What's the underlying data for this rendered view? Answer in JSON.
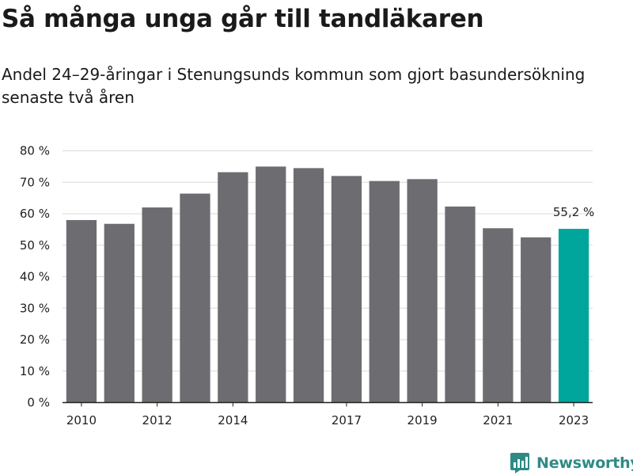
{
  "title": "Så många unga går till tandläkaren",
  "subtitle": "Andel 24–29-åringar i Stenungsunds kommun som gjort basundersökning senaste två åren",
  "brand": {
    "name": "Newsworthy",
    "color": "#2f8a86"
  },
  "colors": {
    "bar": "#6d6c71",
    "highlight": "#00a59c",
    "grid": "#d9d9d9",
    "axis": "#222222"
  },
  "chart_data": {
    "type": "bar",
    "categories": [
      "2010",
      "2011",
      "2012",
      "2013",
      "2014",
      "2015",
      "2016",
      "2017",
      "2018",
      "2019",
      "2020",
      "2021",
      "2022",
      "2023"
    ],
    "values": [
      58.0,
      56.8,
      62.0,
      66.4,
      73.2,
      75.0,
      74.5,
      72.0,
      70.4,
      71.0,
      62.3,
      55.4,
      52.5,
      55.2
    ],
    "x_tick_labels": [
      "2010",
      "",
      "2012",
      "",
      "2014",
      "",
      "",
      "2017",
      "",
      "2019",
      "",
      "2021",
      "",
      "2023"
    ],
    "y_ticks": [
      0,
      10,
      20,
      30,
      40,
      50,
      60,
      70,
      80
    ],
    "y_tick_labels": [
      "0 %",
      "10 %",
      "20 %",
      "30 %",
      "40 %",
      "50 %",
      "60 %",
      "70 %",
      "80 %"
    ],
    "ylim": [
      0,
      80
    ],
    "grid": true,
    "highlight_index": 13,
    "annotations": [
      {
        "index": 13,
        "text": "55,2 %"
      }
    ]
  }
}
